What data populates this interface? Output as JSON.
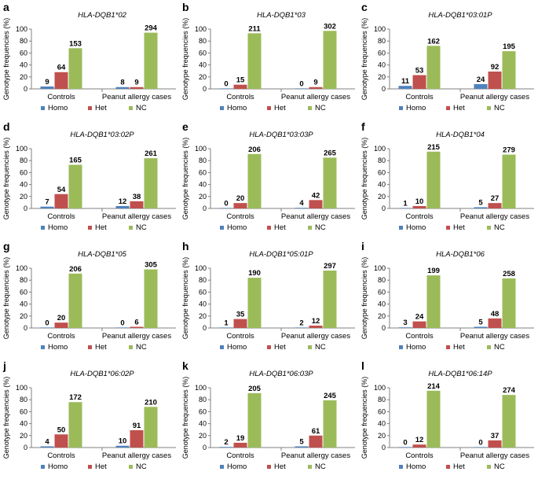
{
  "chart_data": [
    {
      "type": "bar",
      "letter": "a",
      "title": "HLA-DQB1*02",
      "ylabel": "Genotype frequencies (%)",
      "ylim": [
        0,
        100
      ],
      "yticks": [
        0,
        20,
        40,
        60,
        80,
        100
      ],
      "categories": [
        "Controls",
        "Peanut allergy cases"
      ],
      "series": [
        {
          "name": "Homo",
          "color": "#4f81bd",
          "values": [
            4,
            3
          ],
          "labels": [
            "9",
            "8"
          ]
        },
        {
          "name": "Het",
          "color": "#c0504d",
          "values": [
            28,
            3
          ],
          "labels": [
            "64",
            "9"
          ]
        },
        {
          "name": "NC",
          "color": "#9bbb59",
          "values": [
            68,
            94
          ],
          "labels": [
            "153",
            "294"
          ]
        }
      ]
    },
    {
      "type": "bar",
      "letter": "b",
      "title": "HLA-DQB1*03",
      "ylabel": "Genotype frequencies (%)",
      "ylim": [
        0,
        100
      ],
      "yticks": [
        0,
        20,
        40,
        60,
        80,
        100
      ],
      "categories": [
        "Controls",
        "Peanut allergy cases"
      ],
      "series": [
        {
          "name": "Homo",
          "color": "#4f81bd",
          "values": [
            0,
            0
          ],
          "labels": [
            "0",
            "0"
          ]
        },
        {
          "name": "Het",
          "color": "#c0504d",
          "values": [
            7,
            3
          ],
          "labels": [
            "15",
            "9"
          ]
        },
        {
          "name": "NC",
          "color": "#9bbb59",
          "values": [
            93,
            97
          ],
          "labels": [
            "211",
            "302"
          ]
        }
      ]
    },
    {
      "type": "bar",
      "letter": "c",
      "title": "HLA-DQB1*03:01P",
      "ylabel": "Genotype frequencies (%)",
      "ylim": [
        0,
        100
      ],
      "yticks": [
        0,
        20,
        40,
        60,
        80,
        100
      ],
      "categories": [
        "Controls",
        "Peanut allergy cases"
      ],
      "series": [
        {
          "name": "Homo",
          "color": "#4f81bd",
          "values": [
            5,
            8
          ],
          "labels": [
            "11",
            "24"
          ]
        },
        {
          "name": "Het",
          "color": "#c0504d",
          "values": [
            23,
            29
          ],
          "labels": [
            "53",
            "92"
          ]
        },
        {
          "name": "NC",
          "color": "#9bbb59",
          "values": [
            72,
            63
          ],
          "labels": [
            "162",
            "195"
          ]
        }
      ]
    },
    {
      "type": "bar",
      "letter": "d",
      "title": "HLA-DQB1*03:02P",
      "ylabel": "Genotype frequencies (%)",
      "ylim": [
        0,
        100
      ],
      "yticks": [
        0,
        20,
        40,
        60,
        80,
        100
      ],
      "categories": [
        "Controls",
        "Peanut allergy cases"
      ],
      "series": [
        {
          "name": "Homo",
          "color": "#4f81bd",
          "values": [
            3,
            4
          ],
          "labels": [
            "7",
            "12"
          ]
        },
        {
          "name": "Het",
          "color": "#c0504d",
          "values": [
            24,
            12
          ],
          "labels": [
            "54",
            "38"
          ]
        },
        {
          "name": "NC",
          "color": "#9bbb59",
          "values": [
            73,
            84
          ],
          "labels": [
            "165",
            "261"
          ]
        }
      ]
    },
    {
      "type": "bar",
      "letter": "e",
      "title": "HLA-DQB1*03:03P",
      "ylabel": "Genotype frequencies (%)",
      "ylim": [
        0,
        100
      ],
      "yticks": [
        0,
        20,
        40,
        60,
        80,
        100
      ],
      "categories": [
        "Controls",
        "Peanut allergy cases"
      ],
      "series": [
        {
          "name": "Homo",
          "color": "#4f81bd",
          "values": [
            0,
            1
          ],
          "labels": [
            "0",
            "4"
          ]
        },
        {
          "name": "Het",
          "color": "#c0504d",
          "values": [
            9,
            14
          ],
          "labels": [
            "20",
            "42"
          ]
        },
        {
          "name": "NC",
          "color": "#9bbb59",
          "values": [
            91,
            85
          ],
          "labels": [
            "206",
            "265"
          ]
        }
      ]
    },
    {
      "type": "bar",
      "letter": "f",
      "title": "HLA-DQB1*04",
      "ylabel": "Genotype frequencies (%)",
      "ylim": [
        0,
        100
      ],
      "yticks": [
        0,
        20,
        40,
        60,
        80,
        100
      ],
      "categories": [
        "Controls",
        "Peanut allergy cases"
      ],
      "series": [
        {
          "name": "Homo",
          "color": "#4f81bd",
          "values": [
            0.5,
            2
          ],
          "labels": [
            "1",
            "5"
          ]
        },
        {
          "name": "Het",
          "color": "#c0504d",
          "values": [
            4,
            9
          ],
          "labels": [
            "10",
            "27"
          ]
        },
        {
          "name": "NC",
          "color": "#9bbb59",
          "values": [
            95,
            90
          ],
          "labels": [
            "215",
            "279"
          ]
        }
      ]
    },
    {
      "type": "bar",
      "letter": "g",
      "title": "HLA-DQB1*05",
      "ylabel": "Genotype frequencies (%)",
      "ylim": [
        0,
        100
      ],
      "yticks": [
        0,
        20,
        40,
        60,
        80,
        100
      ],
      "categories": [
        "Controls",
        "Peanut allergy cases"
      ],
      "series": [
        {
          "name": "Homo",
          "color": "#4f81bd",
          "values": [
            0,
            0
          ],
          "labels": [
            "0",
            "0"
          ]
        },
        {
          "name": "Het",
          "color": "#c0504d",
          "values": [
            9,
            2
          ],
          "labels": [
            "20",
            "6"
          ]
        },
        {
          "name": "NC",
          "color": "#9bbb59",
          "values": [
            91,
            98
          ],
          "labels": [
            "206",
            "305"
          ]
        }
      ]
    },
    {
      "type": "bar",
      "letter": "h",
      "title": "HLA-DQB1*05:01P",
      "ylabel": "Genotype frequencies (%)",
      "ylim": [
        0,
        100
      ],
      "yticks": [
        0,
        20,
        40,
        60,
        80,
        100
      ],
      "categories": [
        "Controls",
        "Peanut allergy cases"
      ],
      "series": [
        {
          "name": "Homo",
          "color": "#4f81bd",
          "values": [
            0.4,
            0.6
          ],
          "labels": [
            "1",
            "2"
          ]
        },
        {
          "name": "Het",
          "color": "#c0504d",
          "values": [
            15,
            4
          ],
          "labels": [
            "35",
            "12"
          ]
        },
        {
          "name": "NC",
          "color": "#9bbb59",
          "values": [
            84,
            96
          ],
          "labels": [
            "190",
            "297"
          ]
        }
      ]
    },
    {
      "type": "bar",
      "letter": "i",
      "title": "HLA-DQB1*06",
      "ylabel": "Genotype frequencies (%)",
      "ylim": [
        0,
        100
      ],
      "yticks": [
        0,
        20,
        40,
        60,
        80,
        100
      ],
      "categories": [
        "Controls",
        "Peanut allergy cases"
      ],
      "series": [
        {
          "name": "Homo",
          "color": "#4f81bd",
          "values": [
            1,
            2
          ],
          "labels": [
            "3",
            "5"
          ]
        },
        {
          "name": "Het",
          "color": "#c0504d",
          "values": [
            11,
            16
          ],
          "labels": [
            "24",
            "48"
          ]
        },
        {
          "name": "NC",
          "color": "#9bbb59",
          "values": [
            88,
            83
          ],
          "labels": [
            "199",
            "258"
          ]
        }
      ]
    },
    {
      "type": "bar",
      "letter": "j",
      "title": "HLA-DQB1*06:02P",
      "ylabel": "Genotype frequencies (%)",
      "ylim": [
        0,
        100
      ],
      "yticks": [
        0,
        20,
        40,
        60,
        80,
        100
      ],
      "categories": [
        "Controls",
        "Peanut allergy cases"
      ],
      "series": [
        {
          "name": "Homo",
          "color": "#4f81bd",
          "values": [
            2,
            3
          ],
          "labels": [
            "4",
            "10"
          ]
        },
        {
          "name": "Het",
          "color": "#c0504d",
          "values": [
            22,
            29
          ],
          "labels": [
            "50",
            "91"
          ]
        },
        {
          "name": "NC",
          "color": "#9bbb59",
          "values": [
            76,
            68
          ],
          "labels": [
            "172",
            "210"
          ]
        }
      ]
    },
    {
      "type": "bar",
      "letter": "k",
      "title": "HLA-DQB1*06:03P",
      "ylabel": "Genotype frequencies (%)",
      "ylim": [
        0,
        100
      ],
      "yticks": [
        0,
        20,
        40,
        60,
        80,
        100
      ],
      "categories": [
        "Controls",
        "Peanut allergy cases"
      ],
      "series": [
        {
          "name": "Homo",
          "color": "#4f81bd",
          "values": [
            1,
            2
          ],
          "labels": [
            "2",
            "5"
          ]
        },
        {
          "name": "Het",
          "color": "#c0504d",
          "values": [
            8,
            20
          ],
          "labels": [
            "19",
            "61"
          ]
        },
        {
          "name": "NC",
          "color": "#9bbb59",
          "values": [
            91,
            79
          ],
          "labels": [
            "205",
            "245"
          ]
        }
      ]
    },
    {
      "type": "bar",
      "letter": "l",
      "title": "HLA-DQB1*06:14P",
      "ylabel": "Genotype frequencies (%)",
      "ylim": [
        0,
        100
      ],
      "yticks": [
        0,
        20,
        40,
        60,
        80,
        100
      ],
      "categories": [
        "Controls",
        "Peanut allergy cases"
      ],
      "series": [
        {
          "name": "Homo",
          "color": "#4f81bd",
          "values": [
            0,
            0
          ],
          "labels": [
            "0",
            "0"
          ]
        },
        {
          "name": "Het",
          "color": "#c0504d",
          "values": [
            5,
            12
          ],
          "labels": [
            "12",
            "37"
          ]
        },
        {
          "name": "NC",
          "color": "#9bbb59",
          "values": [
            95,
            88
          ],
          "labels": [
            "214",
            "274"
          ]
        }
      ]
    }
  ]
}
